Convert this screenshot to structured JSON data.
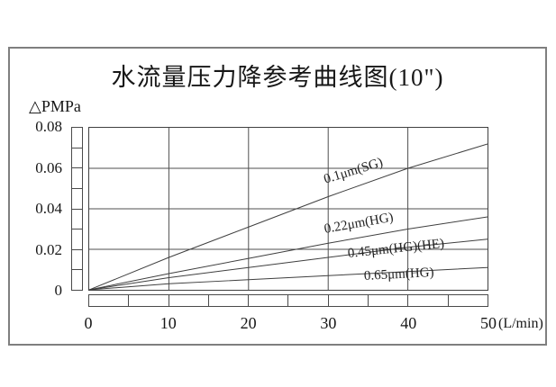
{
  "frame": {
    "title": "水流量压力降参考曲线图(10\")"
  },
  "chart_data": {
    "type": "line",
    "title": "水流量压力降参考曲线图(10\")",
    "xlabel": "(L/min)",
    "ylabel": "△PMPa",
    "xlim": [
      0,
      50
    ],
    "ylim": [
      0,
      0.08
    ],
    "grid": true,
    "x_ticks": [
      0,
      10,
      20,
      30,
      40,
      50
    ],
    "y_ticks": [
      0,
      0.02,
      0.04,
      0.06,
      0.08
    ],
    "x_ruler_segments": 10,
    "y_ruler_segments": 8,
    "x": [
      0,
      10,
      20,
      30,
      40,
      50
    ],
    "series": [
      {
        "name": "0.1μm(SG)",
        "values": [
          0,
          0.016,
          0.031,
          0.046,
          0.06,
          0.072
        ]
      },
      {
        "name": "0.22μm(HG)",
        "values": [
          0,
          0.008,
          0.0155,
          0.023,
          0.03,
          0.036
        ]
      },
      {
        "name": "0.45μm(HG)(HE)",
        "values": [
          0,
          0.006,
          0.011,
          0.016,
          0.021,
          0.025
        ]
      },
      {
        "name": "0.65μm(HG)",
        "values": [
          0,
          0.003,
          0.005,
          0.007,
          0.009,
          0.011
        ]
      }
    ],
    "line_color": "#3f3f3f",
    "grid_color": "#4f4f4f"
  }
}
